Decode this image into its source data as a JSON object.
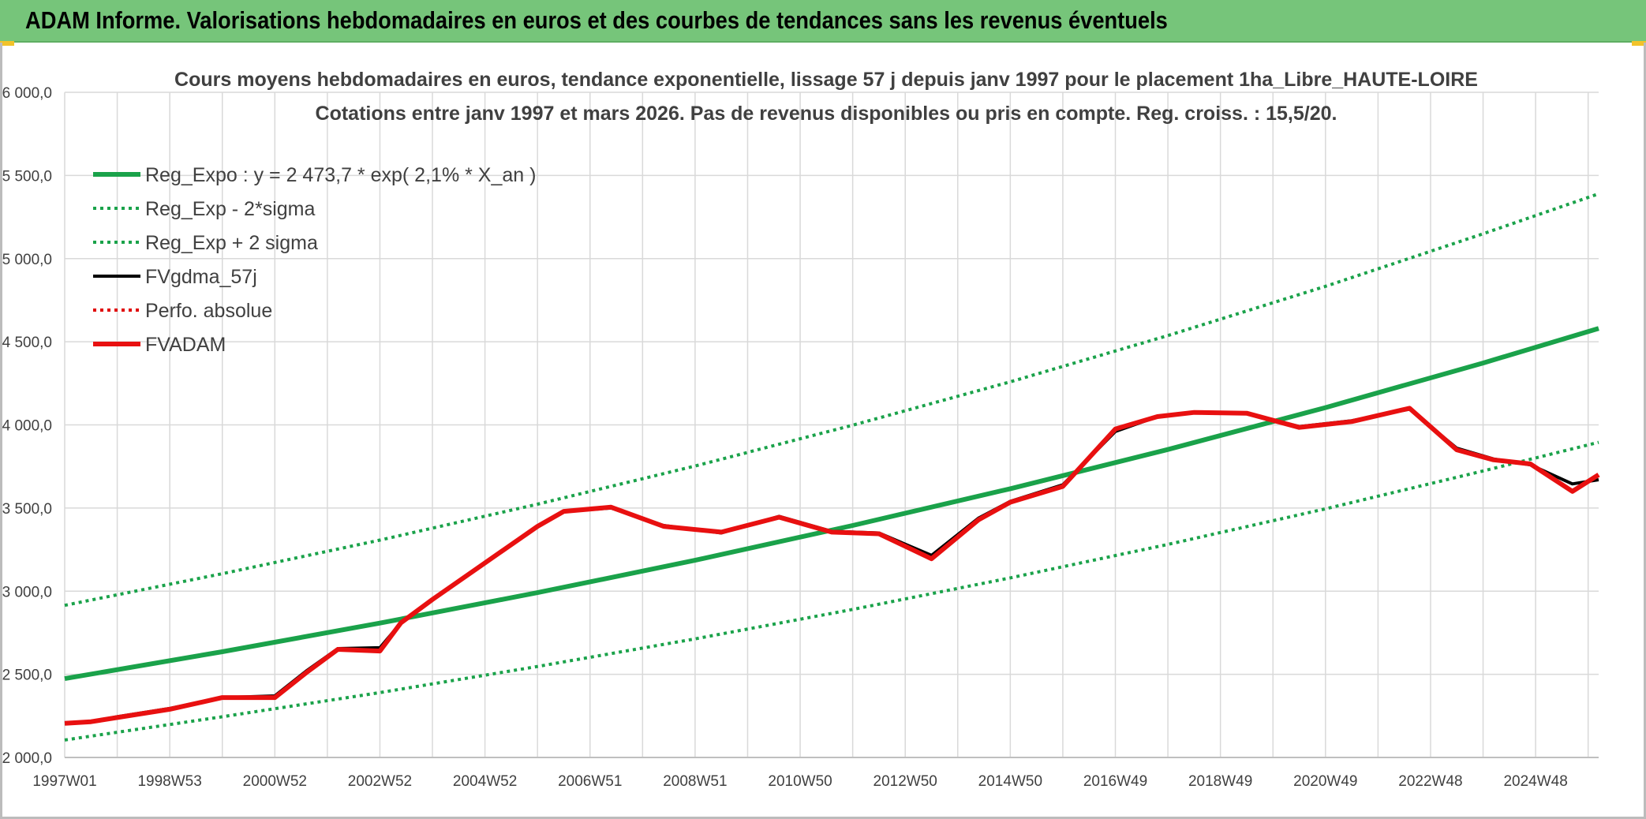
{
  "header": {
    "title": "ADAM Informe. Valorisations hebdomadaires en euros et des courbes de tendances sans les revenus éventuels"
  },
  "colors": {
    "header_bg": "#76c57a",
    "reg_expo": "#1aa24a",
    "sigma": "#1aa24a",
    "fvgdma": "#000000",
    "perfo": "#e00000",
    "fvadam": "#e81010",
    "grid": "#d9d9d9"
  },
  "chart_data": {
    "type": "line",
    "title_lines": [
      "Cours moyens hebdomadaires en euros, tendance exponentielle, lissage 57 j depuis janv 1997 pour le placement 1ha_Libre_HAUTE-LOIRE",
      "Cotations entre janv 1997 et mars 2026. Pas de revenus disponibles ou pris en compte. Reg. croiss. : 15,5/20."
    ],
    "xlabel": "",
    "ylabel": "",
    "ylim": [
      2000,
      6000
    ],
    "xlim": [
      1997.0,
      2026.2
    ],
    "grid": true,
    "legend_position": "top-left",
    "y_ticks": [
      {
        "value": 2000,
        "label": "2 000,0"
      },
      {
        "value": 2500,
        "label": "2 500,0"
      },
      {
        "value": 3000,
        "label": "3 000,0"
      },
      {
        "value": 3500,
        "label": "3 500,0"
      },
      {
        "value": 4000,
        "label": "4 000,0"
      },
      {
        "value": 4500,
        "label": "4 500,0"
      },
      {
        "value": 5000,
        "label": "5 000,0"
      },
      {
        "value": 5500,
        "label": "5 500,0"
      },
      {
        "value": 6000,
        "label": "6 000,0"
      }
    ],
    "x_ticks": [
      {
        "value": 1997.0,
        "label": "1997W01"
      },
      {
        "value": 1999.0,
        "label": "1998W53"
      },
      {
        "value": 2001.0,
        "label": "2000W52"
      },
      {
        "value": 2003.0,
        "label": "2002W52"
      },
      {
        "value": 2005.0,
        "label": "2004W52"
      },
      {
        "value": 2007.0,
        "label": "2006W51"
      },
      {
        "value": 2009.0,
        "label": "2008W51"
      },
      {
        "value": 2011.0,
        "label": "2010W50"
      },
      {
        "value": 2013.0,
        "label": "2012W50"
      },
      {
        "value": 2015.0,
        "label": "2014W50"
      },
      {
        "value": 2017.0,
        "label": "2016W49"
      },
      {
        "value": 2019.0,
        "label": "2018W49"
      },
      {
        "value": 2021.0,
        "label": "2020W49"
      },
      {
        "value": 2023.0,
        "label": "2022W48"
      },
      {
        "value": 2025.0,
        "label": "2024W48"
      }
    ],
    "series": [
      {
        "name": "Reg_Expo : y = 2 473,7 * exp( 2,1% *  X_an )",
        "style": "solid-thick",
        "color": "#1aa24a",
        "points": [
          [
            1997.0,
            2474
          ],
          [
            2000.0,
            2636
          ],
          [
            2003.0,
            2808
          ],
          [
            2006.0,
            2991
          ],
          [
            2009.0,
            3186
          ],
          [
            2012.0,
            3395
          ],
          [
            2015.0,
            3616
          ],
          [
            2018.0,
            3852
          ],
          [
            2021.0,
            4104
          ],
          [
            2024.0,
            4372
          ],
          [
            2026.2,
            4580
          ]
        ]
      },
      {
        "name": "Reg_Exp - 2*sigma",
        "style": "dotted",
        "color": "#1aa24a",
        "points": [
          [
            1997.0,
            2105
          ],
          [
            2000.0,
            2245
          ],
          [
            2003.0,
            2390
          ],
          [
            2006.0,
            2547
          ],
          [
            2009.0,
            2713
          ],
          [
            2012.0,
            2890
          ],
          [
            2015.0,
            3080
          ],
          [
            2018.0,
            3281
          ],
          [
            2021.0,
            3495
          ],
          [
            2024.0,
            3723
          ],
          [
            2026.2,
            3895
          ]
        ]
      },
      {
        "name": "Reg_Exp + 2 sigma",
        "style": "dotted",
        "color": "#1aa24a",
        "points": [
          [
            1997.0,
            2915
          ],
          [
            2000.0,
            3105
          ],
          [
            2003.0,
            3307
          ],
          [
            2006.0,
            3523
          ],
          [
            2009.0,
            3753
          ],
          [
            2012.0,
            3998
          ],
          [
            2015.0,
            4259
          ],
          [
            2018.0,
            4537
          ],
          [
            2021.0,
            4833
          ],
          [
            2024.0,
            5149
          ],
          [
            2026.2,
            5390
          ]
        ]
      },
      {
        "name": "FVgdma_57j",
        "style": "solid",
        "color": "#000000",
        "points": [
          [
            1997.0,
            2205
          ],
          [
            1997.5,
            2215
          ],
          [
            1998.0,
            2245
          ],
          [
            1999.0,
            2295
          ],
          [
            2000.0,
            2360
          ],
          [
            2001.0,
            2370
          ],
          [
            2001.6,
            2520
          ],
          [
            2002.2,
            2655
          ],
          [
            2003.0,
            2660
          ],
          [
            2003.4,
            2810
          ],
          [
            2004.0,
            2950
          ],
          [
            2005.0,
            3170
          ],
          [
            2006.0,
            3390
          ],
          [
            2006.5,
            3480
          ],
          [
            2007.4,
            3500
          ],
          [
            2008.4,
            3395
          ],
          [
            2009.5,
            3350
          ],
          [
            2010.6,
            3450
          ],
          [
            2011.6,
            3360
          ],
          [
            2012.5,
            3350
          ],
          [
            2013.5,
            3215
          ],
          [
            2014.4,
            3440
          ],
          [
            2015.0,
            3540
          ],
          [
            2016.0,
            3640
          ],
          [
            2017.0,
            3960
          ],
          [
            2017.8,
            4050
          ],
          [
            2018.5,
            4075
          ],
          [
            2019.5,
            4070
          ],
          [
            2020.5,
            3990
          ],
          [
            2021.5,
            4025
          ],
          [
            2022.6,
            4095
          ],
          [
            2023.5,
            3860
          ],
          [
            2024.2,
            3795
          ],
          [
            2024.9,
            3760
          ],
          [
            2025.7,
            3645
          ],
          [
            2026.2,
            3670
          ]
        ]
      },
      {
        "name": "Perfo. absolue",
        "style": "dotted",
        "color": "#e00000",
        "points": []
      },
      {
        "name": "FVADAM",
        "style": "solid-thick",
        "color": "#e81010",
        "points": [
          [
            1997.0,
            2205
          ],
          [
            1997.5,
            2215
          ],
          [
            1998.0,
            2240
          ],
          [
            1999.0,
            2290
          ],
          [
            2000.0,
            2360
          ],
          [
            2001.0,
            2360
          ],
          [
            2001.6,
            2510
          ],
          [
            2002.2,
            2650
          ],
          [
            2003.0,
            2640
          ],
          [
            2003.4,
            2810
          ],
          [
            2004.0,
            2950
          ],
          [
            2005.0,
            3170
          ],
          [
            2006.0,
            3390
          ],
          [
            2006.5,
            3480
          ],
          [
            2007.4,
            3505
          ],
          [
            2008.4,
            3390
          ],
          [
            2009.5,
            3355
          ],
          [
            2010.6,
            3445
          ],
          [
            2011.6,
            3355
          ],
          [
            2012.5,
            3345
          ],
          [
            2013.5,
            3195
          ],
          [
            2014.4,
            3430
          ],
          [
            2015.0,
            3535
          ],
          [
            2016.0,
            3630
          ],
          [
            2017.0,
            3975
          ],
          [
            2017.8,
            4050
          ],
          [
            2018.5,
            4075
          ],
          [
            2019.5,
            4070
          ],
          [
            2020.5,
            3985
          ],
          [
            2021.5,
            4020
          ],
          [
            2022.6,
            4100
          ],
          [
            2023.5,
            3850
          ],
          [
            2024.2,
            3790
          ],
          [
            2024.9,
            3765
          ],
          [
            2025.7,
            3600
          ],
          [
            2026.2,
            3700
          ]
        ]
      }
    ]
  }
}
